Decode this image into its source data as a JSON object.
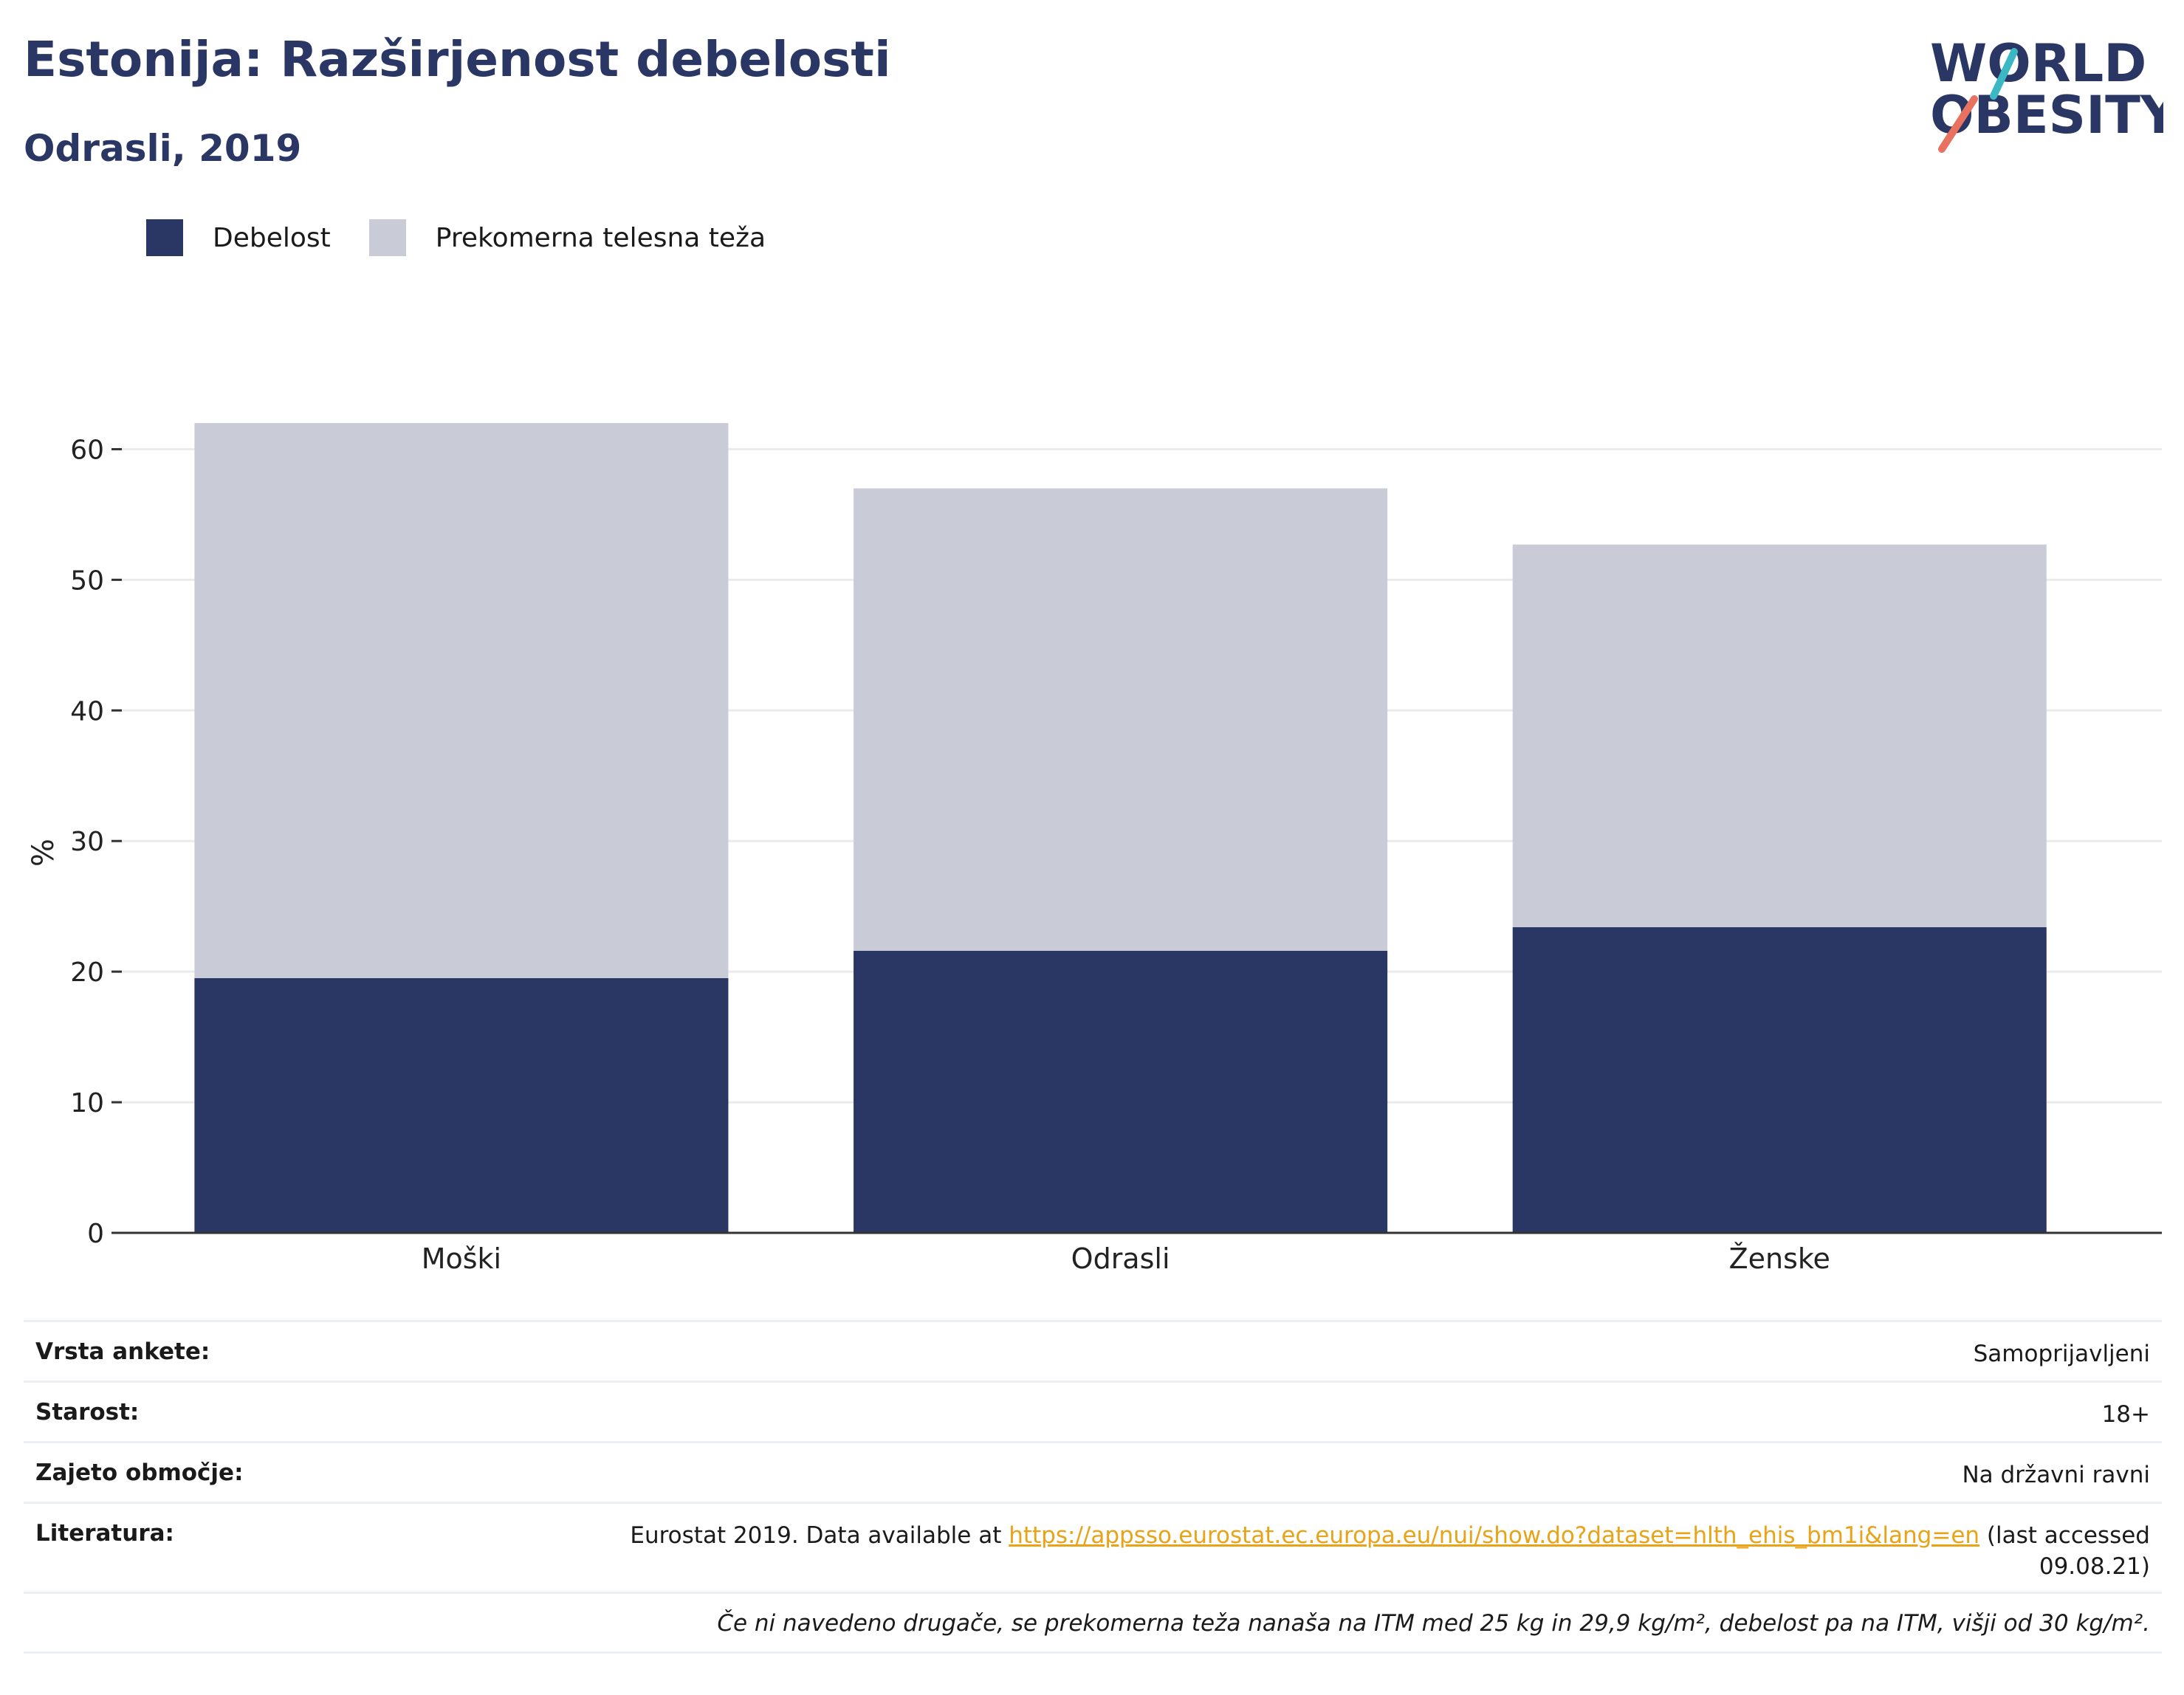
{
  "header": {
    "title": "Estonija: Razširjenost debelosti",
    "subtitle": "Odrasli, 2019"
  },
  "logo": {
    "line1": "WORLD",
    "line2": "OBESITY",
    "text_color": "#2a3764",
    "accent_teal": "#3bb8c3",
    "accent_coral": "#e8725f"
  },
  "legend": {
    "items": [
      {
        "label": "Debelost",
        "color": "#2a3764"
      },
      {
        "label": "Prekomerna telesna teža",
        "color": "#c9ccd7"
      }
    ]
  },
  "chart_data": {
    "type": "bar",
    "stacked": true,
    "categories": [
      "Moški",
      "Odrasli",
      "Ženske"
    ],
    "series": [
      {
        "name": "Debelost",
        "values": [
          19.5,
          21.6,
          23.4
        ],
        "color": "#2a3764"
      },
      {
        "name": "Prekomerna telesna teža",
        "values": [
          42.5,
          35.4,
          29.3
        ],
        "color": "#c9ccd7"
      }
    ],
    "ylabel": "%",
    "xlabel": "",
    "ylim": [
      0,
      65
    ],
    "yticks": [
      0,
      10,
      20,
      30,
      40,
      50,
      60
    ],
    "grid": true,
    "legend_position": "top-left"
  },
  "meta": {
    "survey_type": {
      "label": "Vrsta ankete:",
      "value": "Samoprijavljeni"
    },
    "age": {
      "label": "Starost:",
      "value": "18+"
    },
    "coverage": {
      "label": "Zajeto območje:",
      "value": "Na državni ravni"
    },
    "reference": {
      "label": "Literatura:",
      "prefix": "Eurostat 2019. Data available at ",
      "link": "https://appsso.eurostat.ec.europa.eu/nui/show.do?dataset=hlth_ehis_bm1i&lang=en",
      "suffix": " (last accessed 09.08.21)"
    },
    "note": "Če ni navedeno drugače, se prekomerna teža nanaša na ITM med 25 kg in 29,9 kg/m², debelost pa na ITM, višji od 30 kg/m²."
  }
}
